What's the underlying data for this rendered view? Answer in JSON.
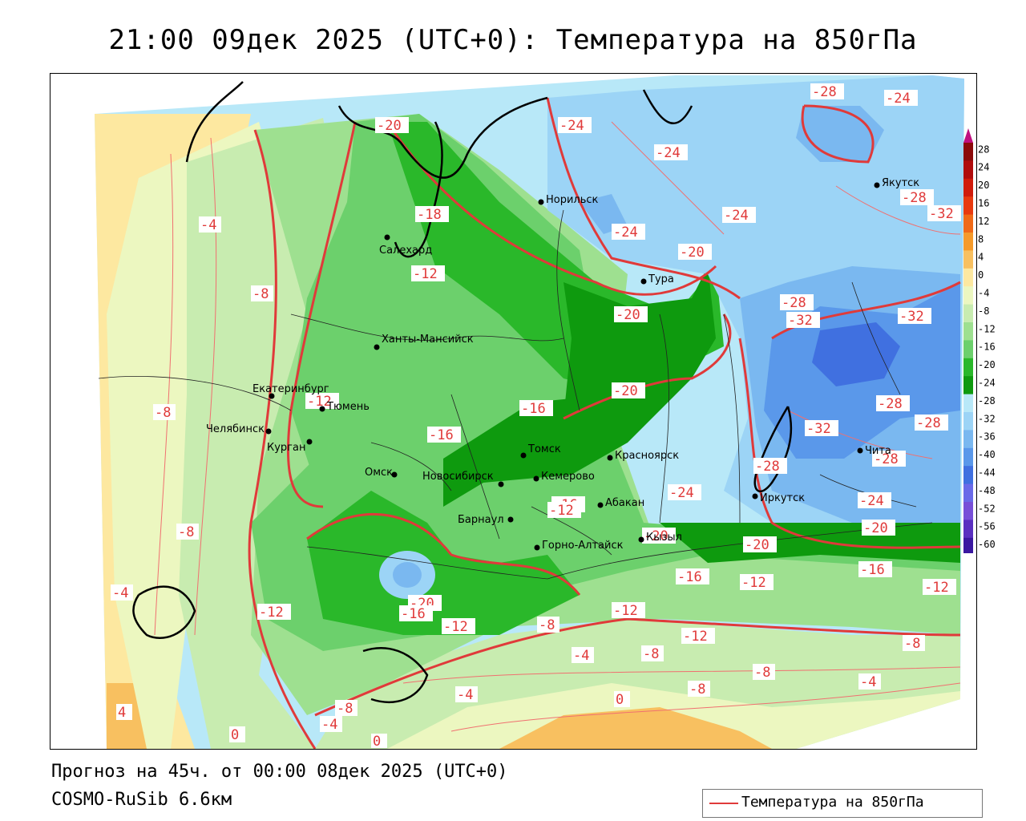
{
  "title": "21:00 09дек 2025 (UTC+0): Температура на 850гПа",
  "footer": {
    "forecast": "Прогноз на 45ч. от 00:00 08дек 2025 (UTC+0)",
    "model": "COSMO-RuSib 6.6км"
  },
  "legend": {
    "line_label": "Температура на 850гПа",
    "line_color": "#e03a3a"
  },
  "colorbar": {
    "levels": [
      "28",
      "24",
      "20",
      "16",
      "12",
      "8",
      "4",
      "0",
      "-4",
      "-8",
      "-12",
      "-16",
      "-20",
      "-24",
      "-28",
      "-32",
      "-36",
      "-40",
      "-44",
      "-48",
      "-52",
      "-56",
      "-60"
    ],
    "colors": [
      "#8b0a0a",
      "#b00c0c",
      "#d01c0c",
      "#e83a10",
      "#f06a18",
      "#f59a2a",
      "#f8c060",
      "#fde8a0",
      "#ecf7c0",
      "#c8ecb0",
      "#9ee090",
      "#6cd06c",
      "#2ab82a",
      "#0e9a0e",
      "#b8e8f8",
      "#9cd4f6",
      "#7ab8f0",
      "#5a98ea",
      "#4070e0",
      "#6a6ae8",
      "#7850d8",
      "#5a30c0",
      "#3a18a0",
      "#201080"
    ]
  },
  "cities": [
    {
      "name": "Салехард"
    },
    {
      "name": "Норильск"
    },
    {
      "name": "Тура"
    },
    {
      "name": "Якутск"
    },
    {
      "name": "Ханты-Мансийск"
    },
    {
      "name": "Екатеринбург"
    },
    {
      "name": "Тюмень"
    },
    {
      "name": "Челябинск"
    },
    {
      "name": "Курган"
    },
    {
      "name": "Омск"
    },
    {
      "name": "Новосибирск"
    },
    {
      "name": "Томск"
    },
    {
      "name": "Красноярск"
    },
    {
      "name": "Кемерово"
    },
    {
      "name": "Барнаул"
    },
    {
      "name": "Абакан"
    },
    {
      "name": "Горно-Алтайск"
    },
    {
      "name": "Кызыл"
    },
    {
      "name": "Иркутск"
    },
    {
      "name": "Чита"
    }
  ],
  "isotherm_labels": [
    {
      "text": "-20"
    },
    {
      "text": "-24"
    },
    {
      "text": "-28"
    },
    {
      "text": "-24"
    },
    {
      "text": "-24"
    },
    {
      "text": "-18"
    },
    {
      "text": "-24"
    },
    {
      "text": "-24"
    },
    {
      "text": "-28"
    },
    {
      "text": "-32"
    },
    {
      "text": "-4"
    },
    {
      "text": "-12"
    },
    {
      "text": "-20"
    },
    {
      "text": "-8"
    },
    {
      "text": "-20"
    },
    {
      "text": "-28"
    },
    {
      "text": "-32"
    },
    {
      "text": "-32"
    },
    {
      "text": "-20"
    },
    {
      "text": "-12"
    },
    {
      "text": "-8"
    },
    {
      "text": "-16"
    },
    {
      "text": "-28"
    },
    {
      "text": "-28"
    },
    {
      "text": "-16"
    },
    {
      "text": "-32"
    },
    {
      "text": "-28"
    },
    {
      "text": "-28"
    },
    {
      "text": "-16"
    },
    {
      "text": "-12"
    },
    {
      "text": "-8"
    },
    {
      "text": "-24"
    },
    {
      "text": "-20"
    },
    {
      "text": "-24"
    },
    {
      "text": "-20"
    },
    {
      "text": "-20"
    },
    {
      "text": "-20"
    },
    {
      "text": "-16"
    },
    {
      "text": "-4"
    },
    {
      "text": "-16"
    },
    {
      "text": "-12"
    },
    {
      "text": "-12"
    },
    {
      "text": "-12"
    },
    {
      "text": "-16"
    },
    {
      "text": "-12"
    },
    {
      "text": "-8"
    },
    {
      "text": "-12"
    },
    {
      "text": "-8"
    },
    {
      "text": "-12"
    },
    {
      "text": "-8"
    },
    {
      "text": "-4"
    },
    {
      "text": "-8"
    },
    {
      "text": "-8"
    },
    {
      "text": "-4"
    },
    {
      "text": "-4"
    },
    {
      "text": "0"
    },
    {
      "text": "4"
    },
    {
      "text": "0"
    },
    {
      "text": "-8"
    },
    {
      "text": "-4"
    },
    {
      "text": "0"
    }
  ]
}
